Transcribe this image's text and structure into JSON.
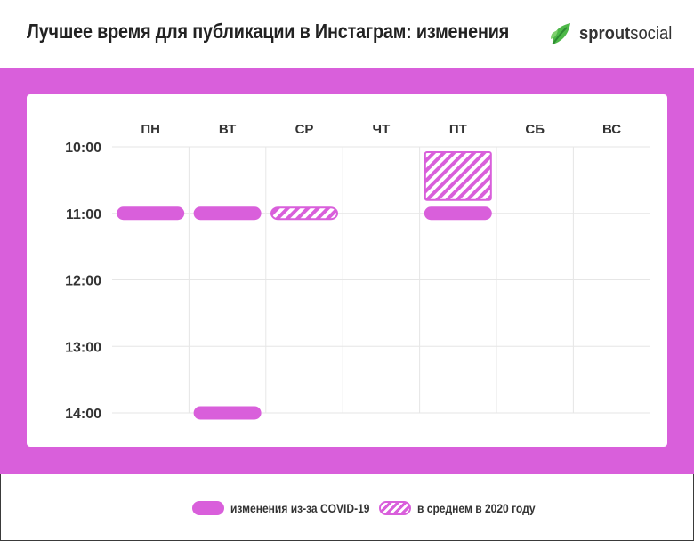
{
  "header": {
    "title": "Лучшее время для публикации в Инстаграм: изменения",
    "logo_text_bold": "sprout",
    "logo_text_regular": "social"
  },
  "colors": {
    "band": "#d95fdb",
    "bar": "#d95fdb",
    "grid": "#e6e6e6",
    "text": "#333333"
  },
  "chart_data": {
    "type": "table",
    "title": "Лучшее время для публикации в Инстаграм: изменения",
    "days": [
      "ПН",
      "ВТ",
      "СР",
      "ЧТ",
      "ПТ",
      "СБ",
      "ВС"
    ],
    "hours": [
      "10:00",
      "11:00",
      "12:00",
      "13:00",
      "14:00"
    ],
    "ylim": [
      10,
      14
    ],
    "series": [
      {
        "name": "изменения из-за COVID-19",
        "style": "solid",
        "points": [
          {
            "day": "ПН",
            "start": 11,
            "end": 11
          },
          {
            "day": "ВТ",
            "start": 11,
            "end": 11
          },
          {
            "day": "ВТ",
            "start": 14,
            "end": 14
          },
          {
            "day": "ПТ",
            "start": 11,
            "end": 11
          }
        ]
      },
      {
        "name": "в среднем в 2020 году",
        "style": "hatched",
        "points": [
          {
            "day": "СР",
            "start": 11,
            "end": 11
          },
          {
            "day": "ПТ",
            "start": 10,
            "end": 11
          }
        ]
      }
    ],
    "grid": true,
    "legend_position": "bottom"
  },
  "legend": [
    {
      "label": "изменения из-за COVID-19",
      "style": "solid"
    },
    {
      "label": "в среднем в 2020 году",
      "style": "hatched"
    }
  ]
}
